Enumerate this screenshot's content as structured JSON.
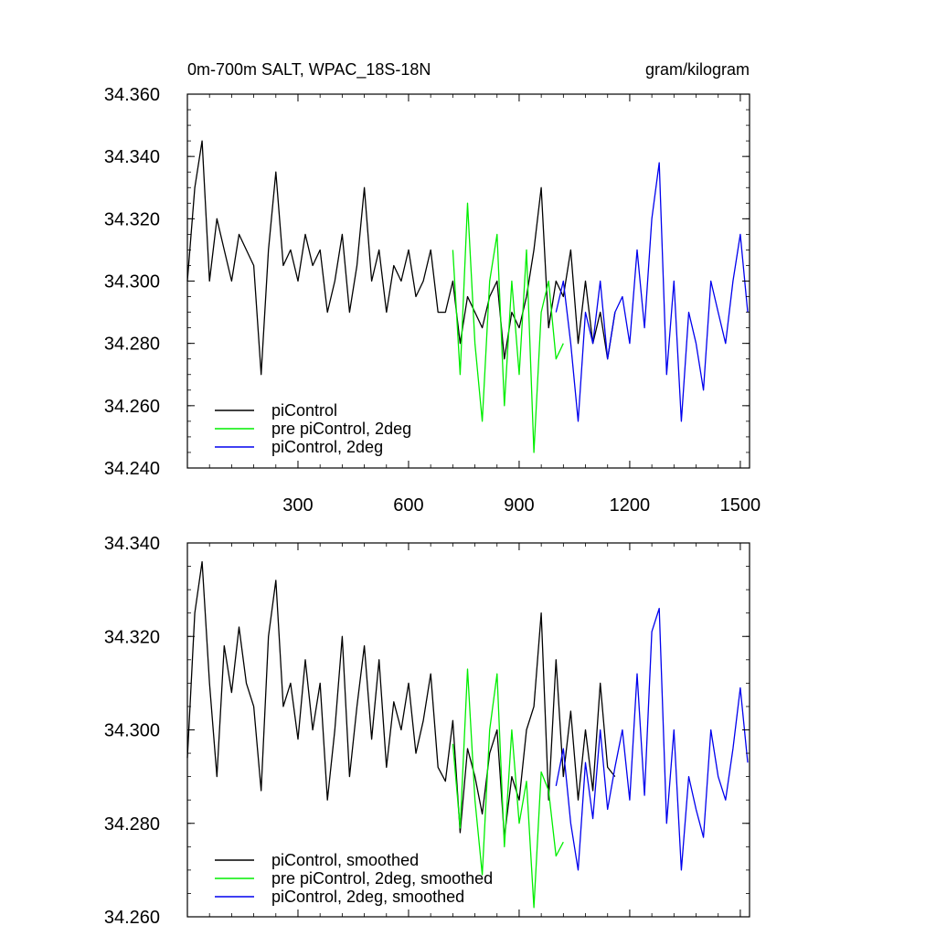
{
  "chart_data": [
    {
      "type": "line",
      "title": "0m-700m SALT, WPAC_18S-18N",
      "units": "gram/kilogram",
      "xlabel": "",
      "ylabel": "",
      "xlim": [
        0,
        1525
      ],
      "ylim": [
        34.24,
        34.36
      ],
      "x_ticks": [
        300,
        600,
        900,
        1200,
        1500
      ],
      "x_tick_labels": [
        "300",
        "600",
        "900",
        "1200",
        "1500"
      ],
      "y_ticks": [
        34.24,
        34.26,
        34.28,
        34.3,
        34.32,
        34.34,
        34.36
      ],
      "y_tick_labels": [
        "34.240",
        "34.260",
        "34.280",
        "34.300",
        "34.320",
        "34.340",
        "34.360"
      ],
      "legend_position": "bottom-left",
      "grid": false,
      "series": [
        {
          "name": "piControl",
          "color": "#000000",
          "x": [
            0,
            20,
            40,
            60,
            80,
            100,
            120,
            140,
            160,
            180,
            200,
            220,
            240,
            260,
            280,
            300,
            320,
            340,
            360,
            380,
            400,
            420,
            440,
            460,
            480,
            500,
            520,
            540,
            560,
            580,
            600,
            620,
            640,
            660,
            680,
            700,
            720,
            740,
            760,
            780,
            800,
            820,
            840,
            860,
            880,
            900,
            920,
            940,
            960,
            980,
            1000,
            1020,
            1040,
            1060,
            1080,
            1100,
            1120,
            1140,
            1160
          ],
          "y": [
            34.3,
            34.33,
            34.345,
            34.3,
            34.32,
            34.31,
            34.3,
            34.315,
            34.31,
            34.305,
            34.27,
            34.31,
            34.335,
            34.305,
            34.31,
            34.3,
            34.315,
            34.305,
            34.31,
            34.29,
            34.3,
            34.315,
            34.29,
            34.305,
            34.33,
            34.3,
            34.31,
            34.29,
            34.305,
            34.3,
            34.31,
            34.295,
            34.3,
            34.31,
            34.29,
            34.29,
            34.3,
            34.28,
            34.295,
            34.29,
            34.285,
            34.295,
            34.3,
            34.275,
            34.29,
            34.285,
            34.295,
            34.31,
            34.33,
            34.285,
            34.3,
            34.295,
            34.31,
            34.28,
            34.3,
            34.28,
            34.29,
            34.275,
            34.29
          ]
        },
        {
          "name": "pre piControl, 2deg",
          "color": "#00ee00",
          "x": [
            720,
            740,
            760,
            780,
            800,
            820,
            840,
            860,
            880,
            900,
            920,
            940,
            960,
            980,
            1000,
            1020
          ],
          "y": [
            34.31,
            34.27,
            34.325,
            34.28,
            34.255,
            34.3,
            34.315,
            34.26,
            34.3,
            34.27,
            34.31,
            34.245,
            34.29,
            34.3,
            34.275,
            34.28
          ]
        },
        {
          "name": "piControl, 2deg",
          "color": "#0000ee",
          "x": [
            1000,
            1020,
            1040,
            1060,
            1080,
            1100,
            1120,
            1140,
            1160,
            1180,
            1200,
            1220,
            1240,
            1260,
            1280,
            1300,
            1320,
            1340,
            1360,
            1380,
            1400,
            1420,
            1440,
            1460,
            1480,
            1500,
            1520
          ],
          "y": [
            34.29,
            34.3,
            34.28,
            34.255,
            34.29,
            34.28,
            34.3,
            34.275,
            34.29,
            34.295,
            34.28,
            34.31,
            34.285,
            34.32,
            34.338,
            34.27,
            34.3,
            34.255,
            34.29,
            34.28,
            34.265,
            34.3,
            34.29,
            34.28,
            34.3,
            34.315,
            34.29
          ]
        }
      ]
    },
    {
      "type": "line",
      "title": "",
      "xlabel": "",
      "ylabel": "",
      "xlim": [
        0,
        1525
      ],
      "ylim": [
        34.26,
        34.34
      ],
      "x_ticks": [
        300,
        600,
        900,
        1200,
        1500
      ],
      "y_ticks": [
        34.26,
        34.28,
        34.3,
        34.32,
        34.34
      ],
      "y_tick_labels": [
        "34.260",
        "34.280",
        "34.300",
        "34.320",
        "34.340"
      ],
      "legend_position": "bottom-left",
      "grid": false,
      "series": [
        {
          "name": "piControl, smoothed",
          "color": "#000000",
          "x": [
            0,
            20,
            40,
            60,
            80,
            100,
            120,
            140,
            160,
            180,
            200,
            220,
            240,
            260,
            280,
            300,
            320,
            340,
            360,
            380,
            400,
            420,
            440,
            460,
            480,
            500,
            520,
            540,
            560,
            580,
            600,
            620,
            640,
            660,
            680,
            700,
            720,
            740,
            760,
            780,
            800,
            820,
            840,
            860,
            880,
            900,
            920,
            940,
            960,
            980,
            1000,
            1020,
            1040,
            1060,
            1080,
            1100,
            1120,
            1140,
            1160
          ],
          "y": [
            34.294,
            34.325,
            34.336,
            34.31,
            34.29,
            34.318,
            34.308,
            34.322,
            34.31,
            34.305,
            34.287,
            34.32,
            34.332,
            34.305,
            34.31,
            34.298,
            34.315,
            34.3,
            34.31,
            34.285,
            34.3,
            34.32,
            34.29,
            34.305,
            34.318,
            34.298,
            34.315,
            34.292,
            34.306,
            34.3,
            34.31,
            34.295,
            34.302,
            34.312,
            34.292,
            34.289,
            34.302,
            34.278,
            34.296,
            34.29,
            34.282,
            34.295,
            34.3,
            34.277,
            34.29,
            34.285,
            34.3,
            34.305,
            34.325,
            34.285,
            34.315,
            34.29,
            34.304,
            34.285,
            34.3,
            34.287,
            34.31,
            34.292,
            34.29
          ]
        },
        {
          "name": "pre piControl, 2deg, smoothed",
          "color": "#00ee00",
          "x": [
            720,
            740,
            760,
            780,
            800,
            820,
            840,
            860,
            880,
            900,
            920,
            940,
            960,
            980,
            1000,
            1020
          ],
          "y": [
            34.297,
            34.279,
            34.313,
            34.285,
            34.269,
            34.3,
            34.312,
            34.275,
            34.3,
            34.28,
            34.289,
            34.262,
            34.291,
            34.287,
            34.273,
            34.276
          ]
        },
        {
          "name": "piControl, 2deg, smoothed",
          "color": "#0000ee",
          "x": [
            1000,
            1020,
            1040,
            1060,
            1080,
            1100,
            1120,
            1140,
            1160,
            1180,
            1200,
            1220,
            1240,
            1260,
            1280,
            1300,
            1320,
            1340,
            1360,
            1380,
            1400,
            1420,
            1440,
            1460,
            1480,
            1500,
            1520
          ],
          "y": [
            34.288,
            34.296,
            34.28,
            34.27,
            34.293,
            34.281,
            34.3,
            34.283,
            34.292,
            34.3,
            34.285,
            34.312,
            34.286,
            34.321,
            34.326,
            34.28,
            34.3,
            34.27,
            34.29,
            34.283,
            34.277,
            34.3,
            34.29,
            34.285,
            34.296,
            34.309,
            34.293
          ]
        }
      ]
    }
  ]
}
